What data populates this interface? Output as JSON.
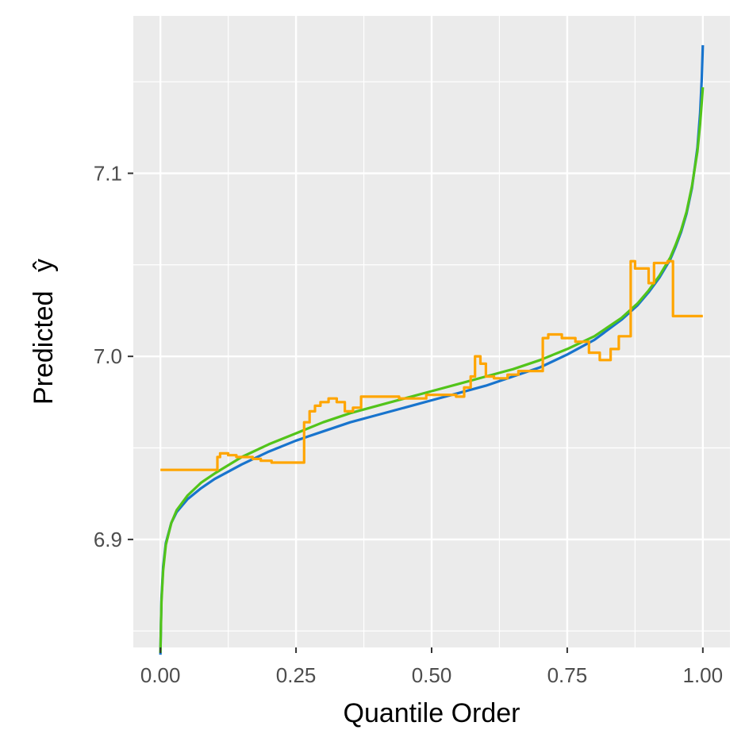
{
  "chart_data": {
    "type": "line",
    "title": "",
    "xlabel": "Quantile Order",
    "ylabel": "Predicted",
    "ylabel_symbol": "ŷ",
    "xlim": [
      -0.05,
      1.05
    ],
    "ylim": [
      6.841,
      7.186
    ],
    "grid": true,
    "legend": "none",
    "x_ticks": [
      0.0,
      0.25,
      0.5,
      0.75,
      1.0
    ],
    "x_tick_labels": [
      "0.00",
      "0.25",
      "0.50",
      "0.75",
      "1.00"
    ],
    "y_ticks": [
      6.9,
      7.0,
      7.1
    ],
    "y_tick_labels": [
      "6.9",
      "7.0",
      "7.1"
    ],
    "y_minor_ticks": [
      6.85,
      6.95,
      7.05,
      7.15
    ],
    "x_minor_ticks": [
      0.125,
      0.375,
      0.625,
      0.875
    ],
    "colors": {
      "panel": "#ebebeb",
      "grid": "#ffffff",
      "series_blue": "#1874cd",
      "series_green": "#52c41a",
      "series_orange": "#ffa500"
    },
    "series": [
      {
        "color": "#1874cd",
        "shape": "smooth",
        "x": [
          0.0,
          0.001,
          0.002,
          0.005,
          0.01,
          0.02,
          0.03,
          0.05,
          0.075,
          0.1,
          0.15,
          0.2,
          0.25,
          0.3,
          0.35,
          0.4,
          0.45,
          0.5,
          0.55,
          0.6,
          0.65,
          0.7,
          0.75,
          0.8,
          0.85,
          0.88,
          0.9,
          0.92,
          0.94,
          0.95,
          0.96,
          0.97,
          0.98,
          0.99,
          0.995,
          0.998,
          1.0
        ],
        "y": [
          6.837,
          6.855,
          6.868,
          6.885,
          6.898,
          6.909,
          6.915,
          6.922,
          6.928,
          6.933,
          6.941,
          6.948,
          6.954,
          6.959,
          6.964,
          6.968,
          6.972,
          6.976,
          6.98,
          6.984,
          6.989,
          6.994,
          7.001,
          7.009,
          7.02,
          7.028,
          7.035,
          7.043,
          7.053,
          7.06,
          7.068,
          7.078,
          7.092,
          7.114,
          7.133,
          7.152,
          7.17
        ]
      },
      {
        "color": "#52c41a",
        "shape": "smooth",
        "x": [
          0.0,
          0.001,
          0.002,
          0.005,
          0.01,
          0.02,
          0.03,
          0.05,
          0.075,
          0.1,
          0.15,
          0.2,
          0.25,
          0.3,
          0.35,
          0.4,
          0.45,
          0.5,
          0.55,
          0.6,
          0.65,
          0.7,
          0.75,
          0.8,
          0.85,
          0.88,
          0.9,
          0.92,
          0.94,
          0.95,
          0.96,
          0.97,
          0.98,
          0.99,
          0.995,
          0.998,
          1.0
        ],
        "y": [
          6.838,
          6.854,
          6.866,
          6.883,
          6.897,
          6.909,
          6.916,
          6.924,
          6.931,
          6.936,
          6.945,
          6.952,
          6.958,
          6.964,
          6.969,
          6.973,
          6.977,
          6.981,
          6.985,
          6.989,
          6.993,
          6.998,
          7.004,
          7.011,
          7.021,
          7.029,
          7.036,
          7.044,
          7.054,
          7.061,
          7.069,
          7.079,
          7.093,
          7.112,
          7.127,
          7.139,
          7.147
        ]
      },
      {
        "color": "#ffa500",
        "shape": "step",
        "x": [
          0.0,
          0.105,
          0.11,
          0.125,
          0.14,
          0.17,
          0.185,
          0.205,
          0.235,
          0.265,
          0.275,
          0.285,
          0.295,
          0.31,
          0.325,
          0.34,
          0.355,
          0.37,
          0.385,
          0.41,
          0.44,
          0.475,
          0.49,
          0.51,
          0.545,
          0.56,
          0.572,
          0.58,
          0.59,
          0.6,
          0.615,
          0.64,
          0.66,
          0.69,
          0.705,
          0.715,
          0.74,
          0.765,
          0.79,
          0.81,
          0.83,
          0.845,
          0.862,
          0.867,
          0.875,
          0.9,
          0.91,
          0.935,
          0.945,
          1.0
        ],
        "y": [
          6.938,
          6.945,
          6.947,
          6.946,
          6.945,
          6.944,
          6.943,
          6.942,
          6.942,
          6.964,
          6.97,
          6.973,
          6.975,
          6.977,
          6.975,
          6.97,
          6.972,
          6.978,
          6.978,
          6.978,
          6.977,
          6.977,
          6.979,
          6.979,
          6.978,
          6.983,
          6.989,
          7.0,
          6.996,
          6.989,
          6.988,
          6.99,
          6.992,
          6.992,
          7.01,
          7.012,
          7.01,
          7.008,
          7.002,
          6.998,
          7.004,
          7.011,
          7.011,
          7.052,
          7.048,
          7.04,
          7.051,
          7.052,
          7.022,
          7.022
        ]
      }
    ]
  }
}
